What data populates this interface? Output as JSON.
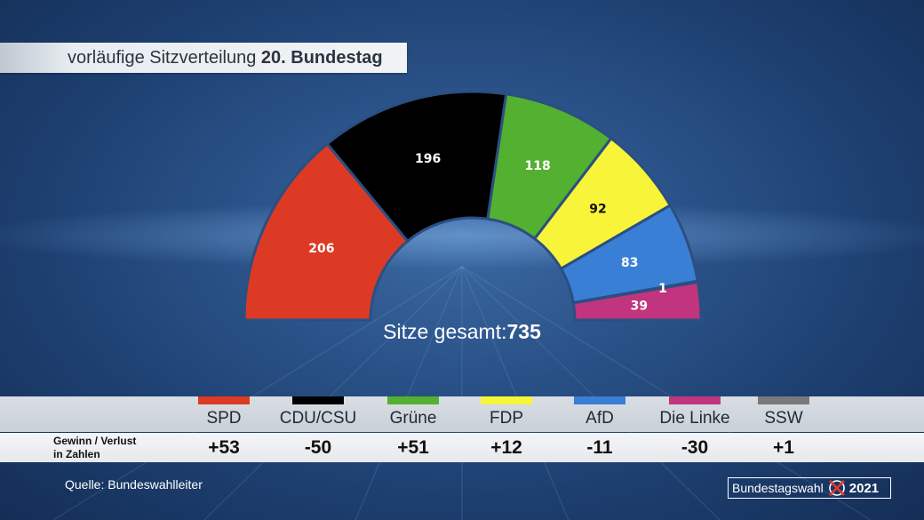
{
  "title": {
    "prefix": "vorläufige Sitzverteilung",
    "bold": "20. Bundestag"
  },
  "total": {
    "label": "Sitze gesamt:",
    "value": "735"
  },
  "chart_data": {
    "type": "pie",
    "shape": "half-donut parliament",
    "series": [
      {
        "name": "SPD",
        "value": 206,
        "color": "#dc3a24",
        "label_color": "#ffffff",
        "change": "+53"
      },
      {
        "name": "CDU/CSU",
        "value": 196,
        "color": "#000000",
        "label_color": "#ffffff",
        "change": "-50"
      },
      {
        "name": "Grüne",
        "value": 118,
        "color": "#54b030",
        "label_color": "#ffffff",
        "change": "+51"
      },
      {
        "name": "FDP",
        "value": 92,
        "color": "#f8f43a",
        "label_color": "#111111",
        "change": "+12"
      },
      {
        "name": "AfD",
        "value": 83,
        "color": "#3a7fd6",
        "label_color": "#ffffff",
        "change": "-11"
      },
      {
        "name": "SSW",
        "value": 1,
        "color": "#7a7a7a",
        "label_color": "#ffffff",
        "change": "+1"
      },
      {
        "name": "Die Linke",
        "value": 39,
        "color": "#c1357e",
        "label_color": "#ffffff",
        "change": "-30"
      }
    ],
    "legend_order": [
      "SPD",
      "CDU/CSU",
      "Grüne",
      "FDP",
      "AfD",
      "Die Linke",
      "SSW"
    ]
  },
  "change_label": {
    "line1": "Gewinn / Verlust",
    "line2": "in Zahlen"
  },
  "source": "Quelle:  Bundeswahlleiter",
  "logo": {
    "text": "Bundestagswahl",
    "year": "2021",
    "icon": "ballot-cross-icon"
  }
}
